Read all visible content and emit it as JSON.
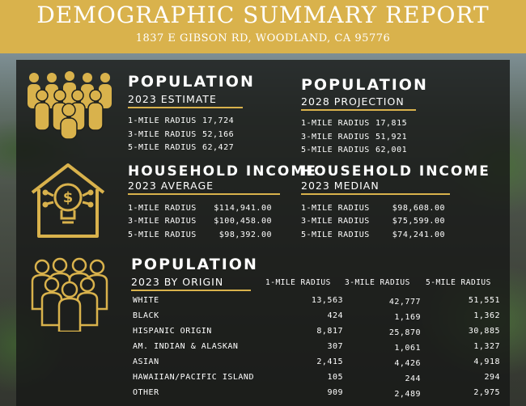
{
  "header": {
    "title": "DEMOGRAPHIC SUMMARY REPORT",
    "address": "1837 E GIBSON RD, WOODLAND, CA 95776"
  },
  "colors": {
    "accent": "#d9b24c",
    "panel": "#161816"
  },
  "icons": [
    "people-group-icon",
    "house-lightbulb-dollar-icon",
    "people-crowd-icon"
  ],
  "population_2023": {
    "title": "POPULATION",
    "subtitle": "2023 ESTIMATE",
    "rows": [
      {
        "label": "1-MILE RADIUS",
        "value": "17,724"
      },
      {
        "label": "3-MILE RADIUS",
        "value": "52,166"
      },
      {
        "label": "5-MILE RADIUS",
        "value": "62,427"
      }
    ]
  },
  "population_2028": {
    "title": "POPULATION",
    "subtitle": "2028 PROJECTION",
    "rows": [
      {
        "label": "1-MILE RADIUS",
        "value": "17,815"
      },
      {
        "label": "3-MILE RADIUS",
        "value": "51,921"
      },
      {
        "label": "5-MILE RADIUS",
        "value": "62,001"
      }
    ]
  },
  "income_average": {
    "title": "HOUSEHOLD INCOME",
    "subtitle": "2023 AVERAGE",
    "rows": [
      {
        "label": "1-MILE RADIUS",
        "value": "$114,941.00"
      },
      {
        "label": "3-MILE RADIUS",
        "value": "$100,458.00"
      },
      {
        "label": "5-MILE RADIUS",
        "value": "$98,392.00"
      }
    ]
  },
  "income_median": {
    "title": "HOUSEHOLD INCOME",
    "subtitle": "2023 MEDIAN",
    "rows": [
      {
        "label": "1-MILE RADIUS",
        "value": "$98,608.00"
      },
      {
        "label": "3-MILE RADIUS",
        "value": "$75,599.00"
      },
      {
        "label": "5-MILE RADIUS",
        "value": "$74,241.00"
      }
    ]
  },
  "origin": {
    "title": "POPULATION",
    "subtitle": "2023 BY ORIGIN",
    "columns": [
      "1-MILE RADIUS",
      "3-MILE RADIUS",
      "5-MILE RADIUS"
    ],
    "rows": [
      {
        "label": "WHITE",
        "values": [
          "13,563",
          "42,777",
          "51,551"
        ]
      },
      {
        "label": "BLACK",
        "values": [
          "424",
          "1,169",
          "1,362"
        ]
      },
      {
        "label": "HISPANIC ORIGIN",
        "values": [
          "8,817",
          "25,870",
          "30,885"
        ]
      },
      {
        "label": "AM. INDIAN & ALASKAN",
        "values": [
          "307",
          "1,061",
          "1,327"
        ]
      },
      {
        "label": "ASIAN",
        "values": [
          "2,415",
          "4,426",
          "4,918"
        ]
      },
      {
        "label": "HAWAIIAN/PACIFIC ISLAND",
        "values": [
          "105",
          "244",
          "294"
        ]
      },
      {
        "label": "OTHER",
        "values": [
          "909",
          "2,489",
          "2,975"
        ]
      }
    ]
  }
}
